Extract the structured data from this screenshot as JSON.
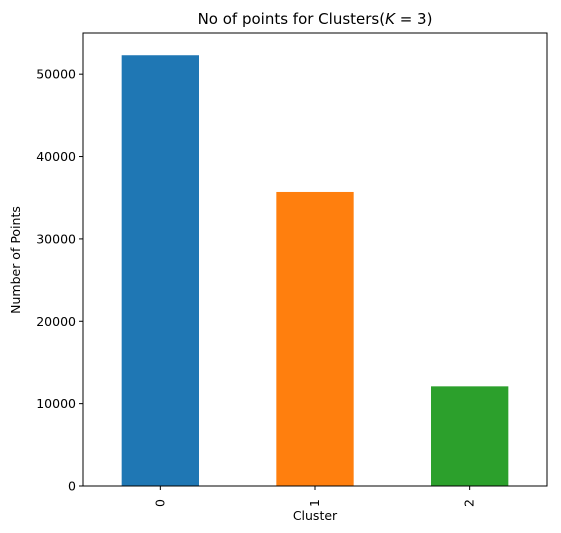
{
  "chart_data": {
    "type": "bar",
    "title": "No of points for Clusters(",
    "title_math": "K",
    "title_suffix": " = 3)",
    "xlabel": "Cluster",
    "ylabel": "Number of Points",
    "categories": [
      "0",
      "1",
      "2"
    ],
    "values": [
      52300,
      35700,
      12100
    ],
    "colors": [
      "#1f77b4",
      "#ff7f0e",
      "#2ca02c"
    ],
    "ylim": [
      0,
      55000
    ],
    "yticks": [
      0,
      10000,
      20000,
      30000,
      40000,
      50000
    ],
    "ytick_labels": [
      "0",
      "10000",
      "20000",
      "30000",
      "40000",
      "50000"
    ],
    "grid": false,
    "legend": "none"
  }
}
